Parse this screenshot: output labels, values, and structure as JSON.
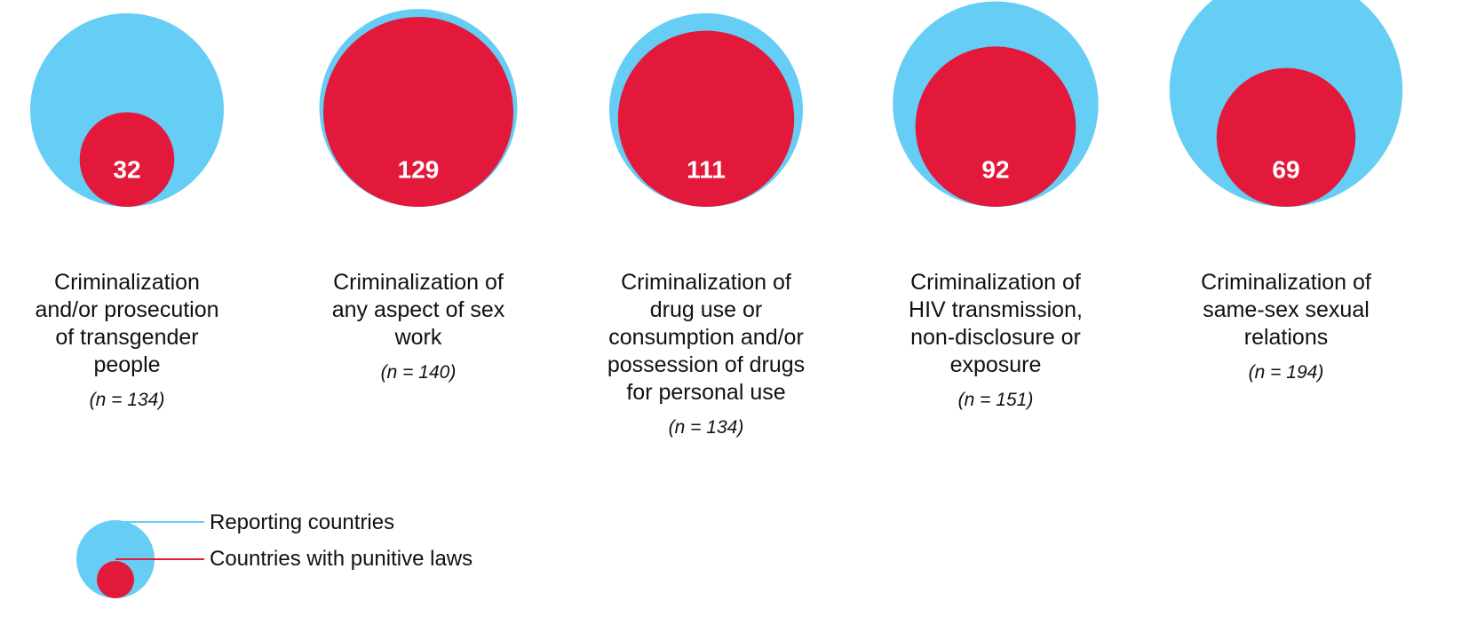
{
  "colors": {
    "reporting": "#66cdf5",
    "punitive": "#e2193a"
  },
  "chart_data": {
    "type": "nested-bubble",
    "categories": [
      {
        "label": "Criminalization and/or prosecution of transgender people",
        "lines": [
          "Criminalization",
          "and/or prosecution",
          "of transgender",
          "people"
        ],
        "n_text": "(n = 134)",
        "reporting": 134,
        "punitive": 32
      },
      {
        "label": "Criminalization of any aspect of sex work",
        "lines": [
          "Criminalization of",
          "any aspect of sex",
          "work"
        ],
        "n_text": "(n = 140)",
        "reporting": 140,
        "punitive": 129
      },
      {
        "label": "Criminalization of drug use or consumption and/or possession of drugs for personal use",
        "lines": [
          "Criminalization of",
          "drug use or",
          "consumption and/or",
          "possession of drugs",
          "for personal use"
        ],
        "n_text": "(n = 134)",
        "reporting": 134,
        "punitive": 111
      },
      {
        "label": "Criminalization of HIV transmission, non-disclosure or exposure",
        "lines": [
          "Criminalization of",
          "HIV transmission,",
          "non-disclosure or",
          "exposure"
        ],
        "n_text": "(n = 151)",
        "reporting": 151,
        "punitive": 92
      },
      {
        "label": "Criminalization of same-sex sexual relations",
        "lines": [
          "Criminalization of",
          "same-sex sexual",
          "relations"
        ],
        "n_text": "(n = 194)",
        "reporting": 194,
        "punitive": 69
      }
    ],
    "legend": {
      "reporting": "Reporting countries",
      "punitive": "Countries with punitive laws"
    }
  }
}
